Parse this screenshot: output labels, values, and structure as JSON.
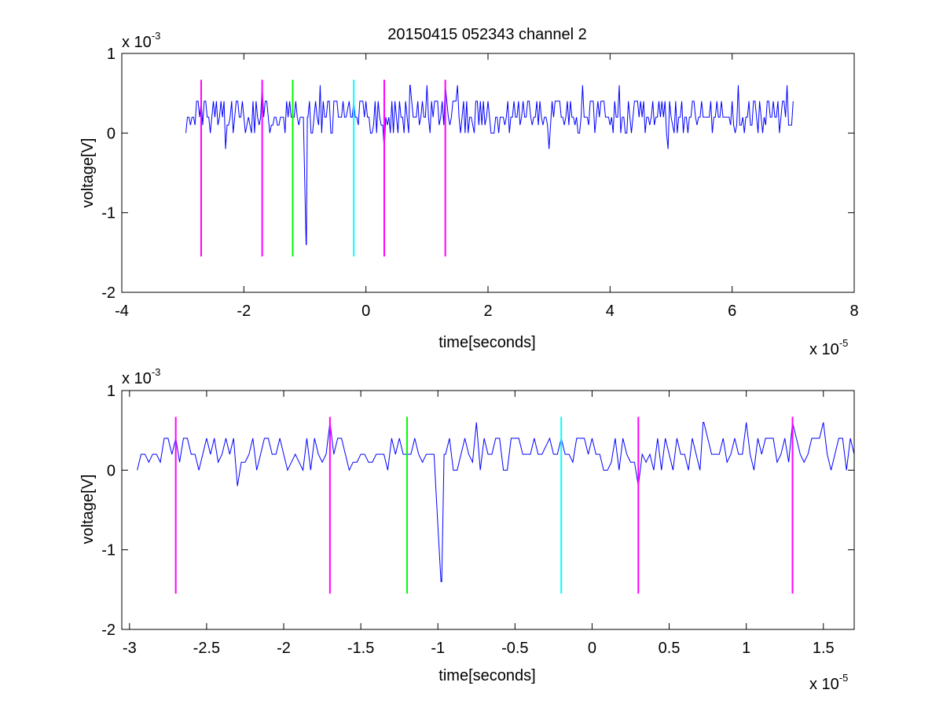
{
  "title": "20150415 052343 channel 2",
  "chart_data": [
    {
      "type": "line",
      "title": "20150415 052343 channel 2",
      "xlabel": "time[seconds]",
      "ylabel": "voltage[V]",
      "x_exponent_label": "x 10",
      "x_exponent_power": "-5",
      "y_exponent_label": "x 10",
      "y_exponent_power": "-3",
      "xlim": [
        -4e-05,
        8e-05
      ],
      "ylim": [
        -0.002,
        0.001
      ],
      "xticks": [
        -4e-05,
        -2e-05,
        0,
        2e-05,
        4e-05,
        6e-05,
        8e-05
      ],
      "xtick_labels": [
        "-4",
        "-2",
        "0",
        "2",
        "4",
        "6",
        "8"
      ],
      "yticks": [
        -0.002,
        -0.001,
        0,
        0.001
      ],
      "ytick_labels": [
        "-2",
        "-1",
        "0",
        "1"
      ],
      "grid": false,
      "signal": {
        "color": "#0000ff",
        "x_start": -2.95e-05,
        "x_end": 7e-05,
        "baseline": 0.0002,
        "points": [
          [
            -2.95e-05,
            0.0
          ],
          [
            -2.92e-05,
            0.0002
          ],
          [
            -2.8e-05,
            0.0001
          ],
          [
            -2.7e-05,
            0.0004
          ],
          [
            -2.45e-05,
            0.0004
          ],
          [
            -2.3e-05,
            -0.0002
          ],
          [
            -1.85e-05,
            0.0004
          ],
          [
            -1.7e-05,
            0.0006
          ],
          [
            -1.5e-05,
            0.0002
          ],
          [
            -1.2e-05,
            0.0002
          ],
          [
            -1.05e-05,
            0.0002
          ],
          [
            -1e-05,
            -0.0007
          ],
          [
            -9.8e-06,
            -0.0014
          ],
          [
            -9.6e-06,
            0.0002
          ],
          [
            -7.5e-06,
            0.0006
          ],
          [
            -5e-06,
            0.0004
          ],
          [
            -3e-06,
            0.0003
          ],
          [
            0.0,
            0.0004
          ],
          [
            3e-06,
            -0.0002
          ],
          [
            5e-06,
            0.0002
          ],
          [
            7.2e-06,
            0.0006
          ],
          [
            1e-05,
            0.0006
          ],
          [
            1.3e-05,
            0.0006
          ],
          [
            1.5e-05,
            0.0006
          ],
          [
            2e-05,
            0.0004
          ],
          [
            3e-05,
            -0.0002
          ],
          [
            3.55e-05,
            0.0006
          ],
          [
            4.15e-05,
            0.0006
          ],
          [
            4.95e-05,
            -0.0002
          ],
          [
            6.1e-05,
            0.0006
          ],
          [
            6.4e-05,
            0.0002
          ],
          [
            6.9e-05,
            0.0006
          ],
          [
            7e-05,
            0.0004
          ]
        ]
      },
      "markers": [
        {
          "x": -2.7e-05,
          "color": "#ff00ff"
        },
        {
          "x": -1.7e-05,
          "color": "#ff00ff"
        },
        {
          "x": -1.2e-05,
          "color": "#00ff00"
        },
        {
          "x": -2e-06,
          "color": "#00ffff"
        },
        {
          "x": 3e-06,
          "color": "#ff00ff"
        },
        {
          "x": 1.3e-05,
          "color": "#ff00ff"
        }
      ],
      "marker_y_range": [
        -0.00155,
        0.00067
      ]
    },
    {
      "type": "line",
      "title": "",
      "xlabel": "time[seconds]",
      "ylabel": "voltage[V]",
      "x_exponent_label": "x 10",
      "x_exponent_power": "-5",
      "y_exponent_label": "x 10",
      "y_exponent_power": "-3",
      "xlim": [
        -3.05e-05,
        1.7e-05
      ],
      "ylim": [
        -0.002,
        0.001
      ],
      "xticks": [
        -3e-05,
        -2.5e-05,
        -2e-05,
        -1.5e-05,
        -1e-05,
        -5e-06,
        0,
        5e-06,
        1e-05,
        1.5e-05
      ],
      "xtick_labels": [
        "-3",
        "-2.5",
        "-2",
        "-1.5",
        "-1",
        "-0.5",
        "0",
        "0.5",
        "1",
        "1.5"
      ],
      "yticks": [
        -0.002,
        -0.001,
        0,
        0.001
      ],
      "ytick_labels": [
        "-2",
        "-1",
        "0",
        "1"
      ],
      "grid": false,
      "signal": {
        "color": "#0000ff",
        "x_start": -2.95e-05,
        "x_end": 1.7e-05,
        "baseline": 0.0002,
        "points": [
          [
            -2.95e-05,
            0.0
          ],
          [
            -2.92e-05,
            0.0002
          ],
          [
            -2.8e-05,
            0.0001
          ],
          [
            -2.7e-05,
            0.0004
          ],
          [
            -2.45e-05,
            0.0004
          ],
          [
            -2.3e-05,
            -0.0002
          ],
          [
            -1.85e-05,
            0.0004
          ],
          [
            -1.7e-05,
            0.0006
          ],
          [
            -1.5e-05,
            0.0002
          ],
          [
            -1.2e-05,
            0.0002
          ],
          [
            -1.05e-05,
            0.0002
          ],
          [
            -1e-05,
            -0.0007
          ],
          [
            -9.8e-06,
            -0.0014
          ],
          [
            -9.6e-06,
            0.0002
          ],
          [
            -7.5e-06,
            0.0006
          ],
          [
            -5e-06,
            0.0004
          ],
          [
            -3e-06,
            0.0003
          ],
          [
            0.0,
            0.0004
          ],
          [
            3e-06,
            -0.0002
          ],
          [
            5e-06,
            0.0002
          ],
          [
            7.2e-06,
            0.0006
          ],
          [
            1e-05,
            0.0006
          ],
          [
            1.3e-05,
            0.0006
          ],
          [
            1.5e-05,
            0.0006
          ],
          [
            1.6e-05,
            0.0004
          ],
          [
            1.7e-05,
            0.0002
          ]
        ]
      },
      "markers": [
        {
          "x": -2.7e-05,
          "color": "#ff00ff"
        },
        {
          "x": -1.7e-05,
          "color": "#ff00ff"
        },
        {
          "x": -1.2e-05,
          "color": "#00ff00"
        },
        {
          "x": -2e-06,
          "color": "#00ffff"
        },
        {
          "x": 3e-06,
          "color": "#ff00ff"
        },
        {
          "x": 1.3e-05,
          "color": "#ff00ff"
        }
      ],
      "marker_y_range": [
        -0.00155,
        0.00067
      ]
    }
  ]
}
